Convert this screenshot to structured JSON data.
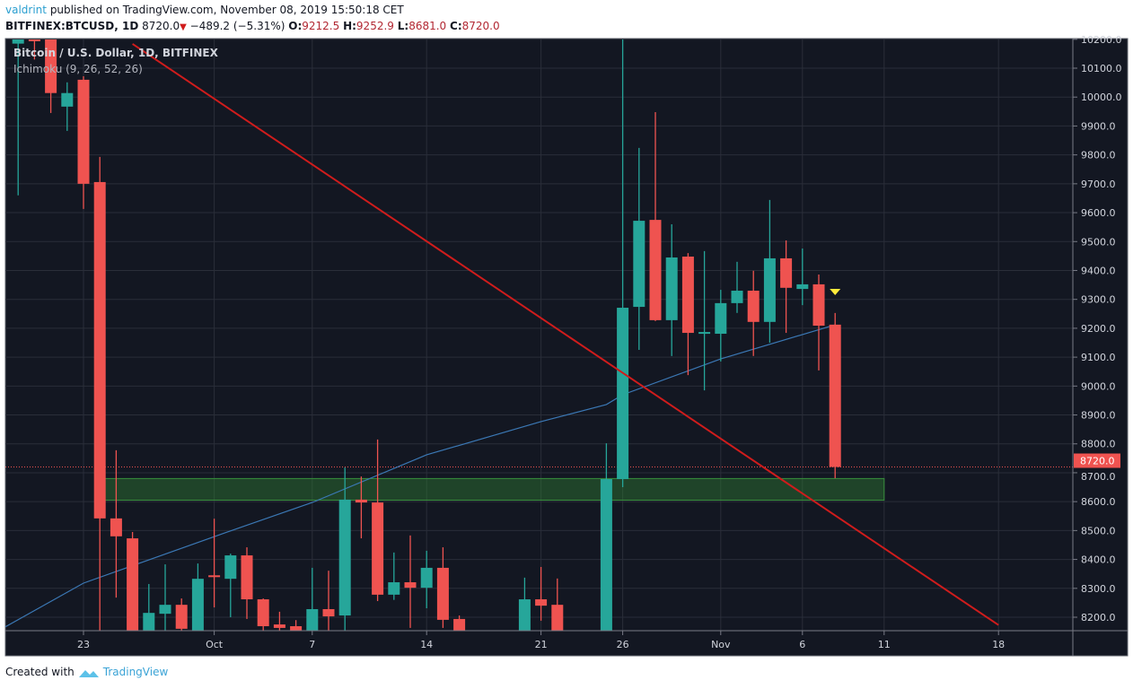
{
  "header": {
    "author": "valdrint",
    "published": "published on TradingView.com, November 08, 2019 15:50:18 CET",
    "symbol": "BITFINEX:BTCUSD, 1D",
    "last": "8720.0",
    "change": "−489.2 (−5.31%)",
    "o_label": "O:",
    "o": "9212.5",
    "h_label": "H:",
    "h": "9252.9",
    "l_label": "L:",
    "l": "8681.0",
    "c_label": "C:",
    "c": "8720.0"
  },
  "legend": {
    "title": "Bitcoin / U.S. Dollar, 1D, BITFINEX",
    "indicator": "Ichimoku (9, 26, 52, 26)"
  },
  "footer": {
    "created_with": "Created with",
    "brand": "TradingView"
  },
  "colors": {
    "up": "#26a69a",
    "down": "#ef5350",
    "background": "#131722",
    "grid": "#2a2e39",
    "trendline": "#d01c1c",
    "ichimoku": "#3b78b5",
    "zone": "#2e7d32",
    "marker": "#ffeb3b"
  },
  "chart_data": {
    "type": "candlestick",
    "title": "Bitcoin / U.S. Dollar, 1D, BITFINEX",
    "ylim": [
      8150,
      10220
    ],
    "y_ticks": [
      "8200.0",
      "8300.0",
      "8400.0",
      "8500.0",
      "8600.0",
      "8700.0",
      "8800.0",
      "8900.0",
      "9000.0",
      "9100.0",
      "9200.0",
      "9300.0",
      "9400.0",
      "9500.0",
      "9600.0",
      "9700.0",
      "9800.0",
      "9900.0",
      "10000.0",
      "10100.0",
      "10200.0"
    ],
    "x_ticks": [
      {
        "date": "2019-09-23",
        "label": "23"
      },
      {
        "date": "2019-10-01",
        "label": "Oct"
      },
      {
        "date": "2019-10-07",
        "label": "7"
      },
      {
        "date": "2019-10-14",
        "label": "14"
      },
      {
        "date": "2019-10-21",
        "label": "21"
      },
      {
        "date": "2019-10-26",
        "label": "26"
      },
      {
        "date": "2019-11-01",
        "label": "Nov"
      },
      {
        "date": "2019-11-06",
        "label": "6"
      },
      {
        "date": "2019-11-11",
        "label": "11"
      },
      {
        "date": "2019-11-18",
        "label": "18"
      }
    ],
    "candles_columns": [
      "date",
      "open",
      "high",
      "low",
      "close"
    ],
    "candles": [
      [
        "2019-09-19",
        10185,
        10260,
        9660,
        10210
      ],
      [
        "2019-09-20",
        10205,
        10240,
        10130,
        10195
      ],
      [
        "2019-09-21",
        10200,
        10230,
        9945,
        10014
      ],
      [
        "2019-09-22",
        9967,
        10051,
        9883,
        10014
      ],
      [
        "2019-09-23",
        10060,
        10072,
        9613,
        9700
      ],
      [
        "2019-09-24",
        9706,
        9793,
        7900,
        8542
      ],
      [
        "2019-09-25",
        8542,
        8778,
        8268,
        8480
      ],
      [
        "2019-09-26",
        8473,
        8495,
        7900,
        8060
      ],
      [
        "2019-09-27",
        8050,
        8315,
        7950,
        8215
      ],
      [
        "2019-09-28",
        8212,
        8383,
        8100,
        8243
      ],
      [
        "2019-09-29",
        8243,
        8265,
        8050,
        8160
      ],
      [
        "2019-09-30",
        8050,
        8386,
        8000,
        8333
      ],
      [
        "2019-10-01",
        8345,
        8541,
        8234,
        8340
      ],
      [
        "2019-10-02",
        8333,
        8420,
        8200,
        8414
      ],
      [
        "2019-10-03",
        8414,
        8442,
        8194,
        8262
      ],
      [
        "2019-10-04",
        8262,
        8265,
        8100,
        8169
      ],
      [
        "2019-10-05",
        8175,
        8219,
        8100,
        8163
      ],
      [
        "2019-10-06",
        8169,
        8190,
        7900,
        8140
      ],
      [
        "2019-10-07",
        8100,
        8371,
        8050,
        8228
      ],
      [
        "2019-10-08",
        8228,
        8361,
        8100,
        8203
      ],
      [
        "2019-10-09",
        8206,
        8718,
        8150,
        8607
      ],
      [
        "2019-10-10",
        8607,
        8687,
        8473,
        8597
      ],
      [
        "2019-10-11",
        8597,
        8815,
        8256,
        8278
      ],
      [
        "2019-10-12",
        8278,
        8424,
        8260,
        8321
      ],
      [
        "2019-10-13",
        8321,
        8483,
        8163,
        8302
      ],
      [
        "2019-10-14",
        8302,
        8430,
        8231,
        8371
      ],
      [
        "2019-10-15",
        8371,
        8442,
        8163,
        8191
      ],
      [
        "2019-10-16",
        8194,
        8206,
        7950,
        8100
      ],
      [
        "2019-10-20",
        8100,
        8337,
        7950,
        8262
      ],
      [
        "2019-10-21",
        8262,
        8374,
        8188,
        8240
      ],
      [
        "2019-10-22",
        8243,
        8334,
        7950,
        8080
      ],
      [
        "2019-10-25",
        7480,
        8802,
        7450,
        8678
      ],
      [
        "2019-10-26",
        8678,
        10400,
        8650,
        9271
      ],
      [
        "2019-10-27",
        9274,
        9824,
        9125,
        9572
      ],
      [
        "2019-10-28",
        9575,
        9948,
        9225,
        9228
      ],
      [
        "2019-10-29",
        9228,
        9560,
        9104,
        9445
      ],
      [
        "2019-10-30",
        9448,
        9460,
        9038,
        9184
      ],
      [
        "2019-10-31",
        9184,
        9467,
        8985,
        9187
      ],
      [
        "2019-11-01",
        9181,
        9333,
        9085,
        9287
      ],
      [
        "2019-11-02",
        9287,
        9430,
        9253,
        9330
      ],
      [
        "2019-11-03",
        9330,
        9399,
        9104,
        9222
      ],
      [
        "2019-11-04",
        9222,
        9644,
        9150,
        9442
      ],
      [
        "2019-11-05",
        9442,
        9504,
        9184,
        9340
      ],
      [
        "2019-11-06",
        9336,
        9476,
        9280,
        9352
      ],
      [
        "2019-11-07",
        9352,
        9386,
        9054,
        9209
      ],
      [
        "2019-11-08",
        9212.5,
        9252.9,
        8681.0,
        8720.0
      ]
    ],
    "ichimoku_line": [
      [
        "2019-09-18",
        8160
      ],
      [
        "2019-09-23",
        8318
      ],
      [
        "2019-10-01",
        8479
      ],
      [
        "2019-10-07",
        8597
      ],
      [
        "2019-10-14",
        8762
      ],
      [
        "2019-10-21",
        8877
      ],
      [
        "2019-10-25",
        8936
      ],
      [
        "2019-10-26",
        8970
      ],
      [
        "2019-11-01",
        9094
      ],
      [
        "2019-11-08",
        9212
      ]
    ],
    "trendline": [
      [
        "2019-09-26",
        10184
      ],
      [
        "2019-11-18",
        8173
      ]
    ],
    "support_zone": {
      "from": "2019-09-24",
      "to": "2019-11-11",
      "low": 8605,
      "high": 8680
    },
    "last_price_line": 8720.0,
    "last_price_label": "8720.0",
    "marker": {
      "date": "2019-11-08",
      "price": 9327,
      "shape": "triangle-down"
    }
  }
}
